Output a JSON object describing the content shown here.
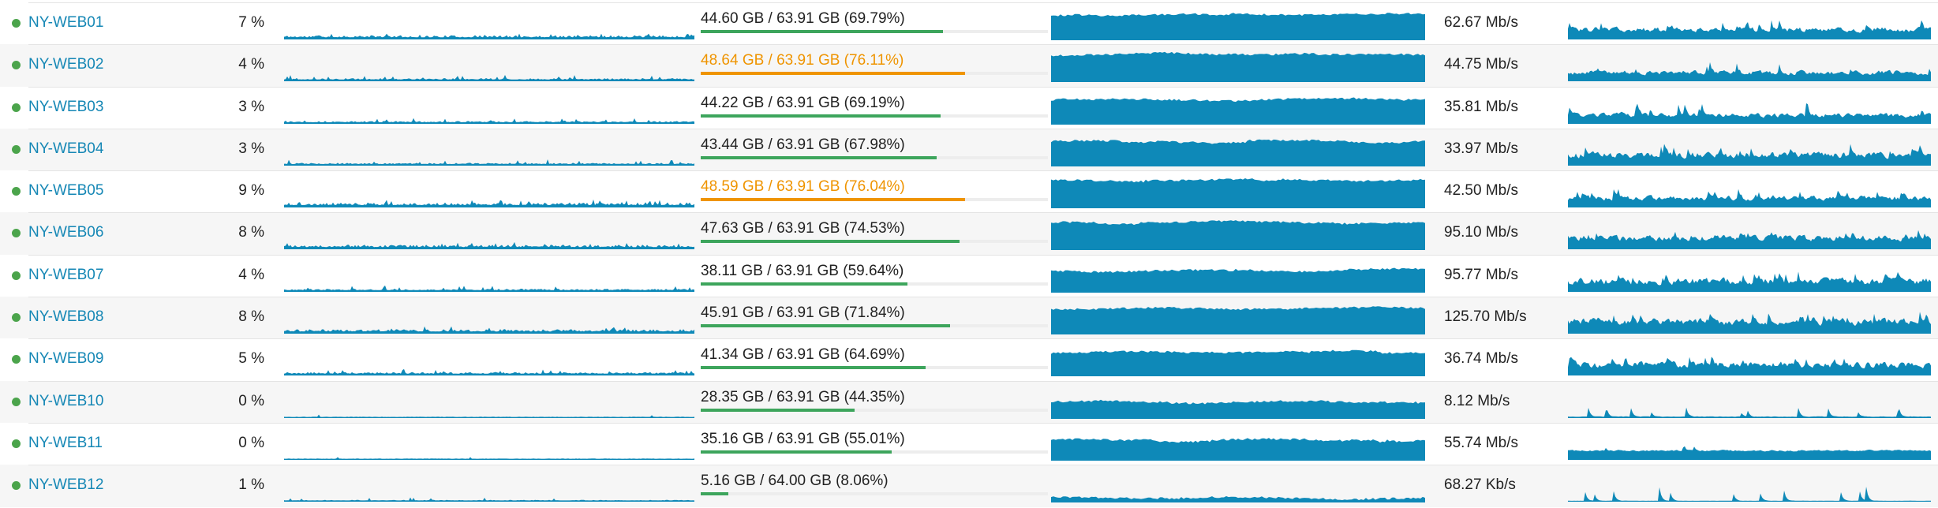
{
  "colors": {
    "link": "#1587b5",
    "chart": "#0e89b8",
    "dot_up": "#4ba44b",
    "mem_ok": "#3da55c",
    "mem_warn": "#ef9400",
    "text": "#222222",
    "track": "#ededed",
    "divider": "#e4e4e4",
    "row_alt": "#f6f6f6"
  },
  "rows": [
    {
      "name": "NY-WEB01",
      "status": "up",
      "cpu": "7 %",
      "memory": {
        "used": "44.60 GB",
        "total": "63.91 GB",
        "percent": 69.79,
        "text": "44.60 GB / 63.91 GB (69.79%)",
        "state": "ok"
      },
      "speed": "62.67 Mb/s",
      "sparks": {
        "cpu": {
          "seed": 11,
          "amp": 4.2,
          "sp": 0.05,
          "sa": 3
        },
        "mem": {
          "seed": 101
        },
        "net": {
          "seed": 31,
          "base": 0.3,
          "noise": 0.8,
          "sp": 0.05,
          "sa": 0.45
        }
      }
    },
    {
      "name": "NY-WEB02",
      "status": "up",
      "cpu": "4 %",
      "memory": {
        "used": "48.64 GB",
        "total": "63.91 GB",
        "percent": 76.11,
        "text": "48.64 GB / 63.91 GB (76.11%)",
        "state": "warn"
      },
      "speed": "44.75 Mb/s",
      "sparks": {
        "cpu": {
          "seed": 12,
          "amp": 2.8,
          "sp": 0.05,
          "sa": 3
        },
        "mem": {
          "seed": 102
        },
        "net": {
          "seed": 32,
          "base": 0.26,
          "noise": 0.8,
          "sp": 0.04,
          "sa": 0.55
        }
      }
    },
    {
      "name": "NY-WEB03",
      "status": "up",
      "cpu": "3 %",
      "memory": {
        "used": "44.22 GB",
        "total": "63.91 GB",
        "percent": 69.19,
        "text": "44.22 GB / 63.91 GB (69.19%)",
        "state": "ok"
      },
      "speed": "35.81 Mb/s",
      "sparks": {
        "cpu": {
          "seed": 13,
          "amp": 2.4,
          "sp": 0.05,
          "sa": 3
        },
        "mem": {
          "seed": 103
        },
        "net": {
          "seed": 33,
          "base": 0.26,
          "noise": 0.8,
          "sp": 0.05,
          "sa": 0.6
        }
      }
    },
    {
      "name": "NY-WEB04",
      "status": "up",
      "cpu": "3 %",
      "memory": {
        "used": "43.44 GB",
        "total": "63.91 GB",
        "percent": 67.98,
        "text": "43.44 GB / 63.91 GB (67.98%)",
        "state": "ok"
      },
      "speed": "33.97 Mb/s",
      "sparks": {
        "cpu": {
          "seed": 14,
          "amp": 2.4,
          "sp": 0.05,
          "sa": 3
        },
        "mem": {
          "seed": 104
        },
        "net": {
          "seed": 34,
          "base": 0.32,
          "noise": 0.9,
          "sp": 0.08,
          "sa": 0.5
        }
      }
    },
    {
      "name": "NY-WEB05",
      "status": "up",
      "cpu": "9 %",
      "memory": {
        "used": "48.59 GB",
        "total": "63.91 GB",
        "percent": 76.04,
        "text": "48.59 GB / 63.91 GB (76.04%)",
        "state": "warn"
      },
      "speed": "42.50 Mb/s",
      "sparks": {
        "cpu": {
          "seed": 15,
          "amp": 5.2,
          "sp": 0.06,
          "sa": 3
        },
        "mem": {
          "seed": 105
        },
        "net": {
          "seed": 35,
          "base": 0.28,
          "noise": 0.8,
          "sp": 0.06,
          "sa": 0.45
        }
      }
    },
    {
      "name": "NY-WEB06",
      "status": "up",
      "cpu": "8 %",
      "memory": {
        "used": "47.63 GB",
        "total": "63.91 GB",
        "percent": 74.53,
        "text": "47.63 GB / 63.91 GB (74.53%)",
        "state": "ok"
      },
      "speed": "95.10 Mb/s",
      "sparks": {
        "cpu": {
          "seed": 16,
          "amp": 4.6,
          "sp": 0.05,
          "sa": 3
        },
        "mem": {
          "seed": 106
        },
        "net": {
          "seed": 36,
          "base": 0.34,
          "noise": 0.8,
          "sp": 0.06,
          "sa": 0.4
        }
      }
    },
    {
      "name": "NY-WEB07",
      "status": "up",
      "cpu": "4 %",
      "memory": {
        "used": "38.11 GB",
        "total": "63.91 GB",
        "percent": 59.64,
        "text": "38.11 GB / 63.91 GB (59.64%)",
        "state": "ok"
      },
      "speed": "95.77 Mb/s",
      "sparks": {
        "cpu": {
          "seed": 17,
          "amp": 2.8,
          "sp": 0.05,
          "sa": 3
        },
        "mem": {
          "seed": 107
        },
        "net": {
          "seed": 37,
          "base": 0.32,
          "noise": 1.0,
          "sp": 0.09,
          "sa": 0.55
        }
      }
    },
    {
      "name": "NY-WEB08",
      "status": "up",
      "cpu": "8 %",
      "memory": {
        "used": "45.91 GB",
        "total": "63.91 GB",
        "percent": 71.84,
        "text": "45.91 GB / 63.91 GB (71.84%)",
        "state": "ok"
      },
      "speed": "125.70 Mb/s",
      "sparks": {
        "cpu": {
          "seed": 18,
          "amp": 4.6,
          "sp": 0.05,
          "sa": 3
        },
        "mem": {
          "seed": 108
        },
        "net": {
          "seed": 38,
          "base": 0.36,
          "noise": 0.9,
          "sp": 0.07,
          "sa": 0.45
        }
      }
    },
    {
      "name": "NY-WEB09",
      "status": "up",
      "cpu": "5 %",
      "memory": {
        "used": "41.34 GB",
        "total": "63.91 GB",
        "percent": 64.69,
        "text": "41.34 GB / 63.91 GB (64.69%)",
        "state": "ok"
      },
      "speed": "36.74 Mb/s",
      "sparks": {
        "cpu": {
          "seed": 19,
          "amp": 3.2,
          "sp": 0.05,
          "sa": 3
        },
        "mem": {
          "seed": 109
        },
        "net": {
          "seed": 39,
          "base": 0.32,
          "noise": 0.9,
          "sp": 0.06,
          "sa": 0.45
        }
      }
    },
    {
      "name": "NY-WEB10",
      "status": "up",
      "cpu": "0 %",
      "memory": {
        "used": "28.35 GB",
        "total": "63.91 GB",
        "percent": 44.35,
        "text": "28.35 GB / 63.91 GB (44.35%)",
        "state": "ok"
      },
      "speed": "8.12 Mb/s",
      "sparks": {
        "cpu": {
          "seed": 20,
          "amp": 0.6,
          "sp": 0.015,
          "sa": 3
        },
        "mem": {
          "seed": 110
        },
        "net": {
          "seed": 40,
          "base": 0.045,
          "noise": 0.5,
          "sp": 0.05,
          "sa": 0.5
        }
      }
    },
    {
      "name": "NY-WEB11",
      "status": "up",
      "cpu": "0 %",
      "memory": {
        "used": "35.16 GB",
        "total": "63.91 GB",
        "percent": 55.01,
        "text": "35.16 GB / 63.91 GB (55.01%)",
        "state": "ok"
      },
      "speed": "55.74 Mb/s",
      "sparks": {
        "cpu": {
          "seed": 21,
          "amp": 0.6,
          "sp": 0.015,
          "sa": 3
        },
        "mem": {
          "seed": 111
        },
        "net": {
          "seed": 41,
          "base": 0.28,
          "noise": 0.25,
          "sp": 0.02,
          "sa": 0.25
        }
      }
    },
    {
      "name": "NY-WEB12",
      "status": "up",
      "cpu": "1 %",
      "memory": {
        "used": "5.16 GB",
        "total": "64.00 GB",
        "percent": 8.06,
        "text": "5.16 GB / 64.00 GB (8.06%)",
        "state": "ok"
      },
      "speed": "68.27 Kb/s",
      "sparks": {
        "cpu": {
          "seed": 22,
          "amp": 1.1,
          "sp": 0.03,
          "sa": 3
        },
        "mem": {
          "seed": 112
        },
        "net": {
          "seed": 42,
          "base": 0.028,
          "noise": 0.5,
          "sp": 0.045,
          "sa": 0.9
        }
      }
    }
  ]
}
